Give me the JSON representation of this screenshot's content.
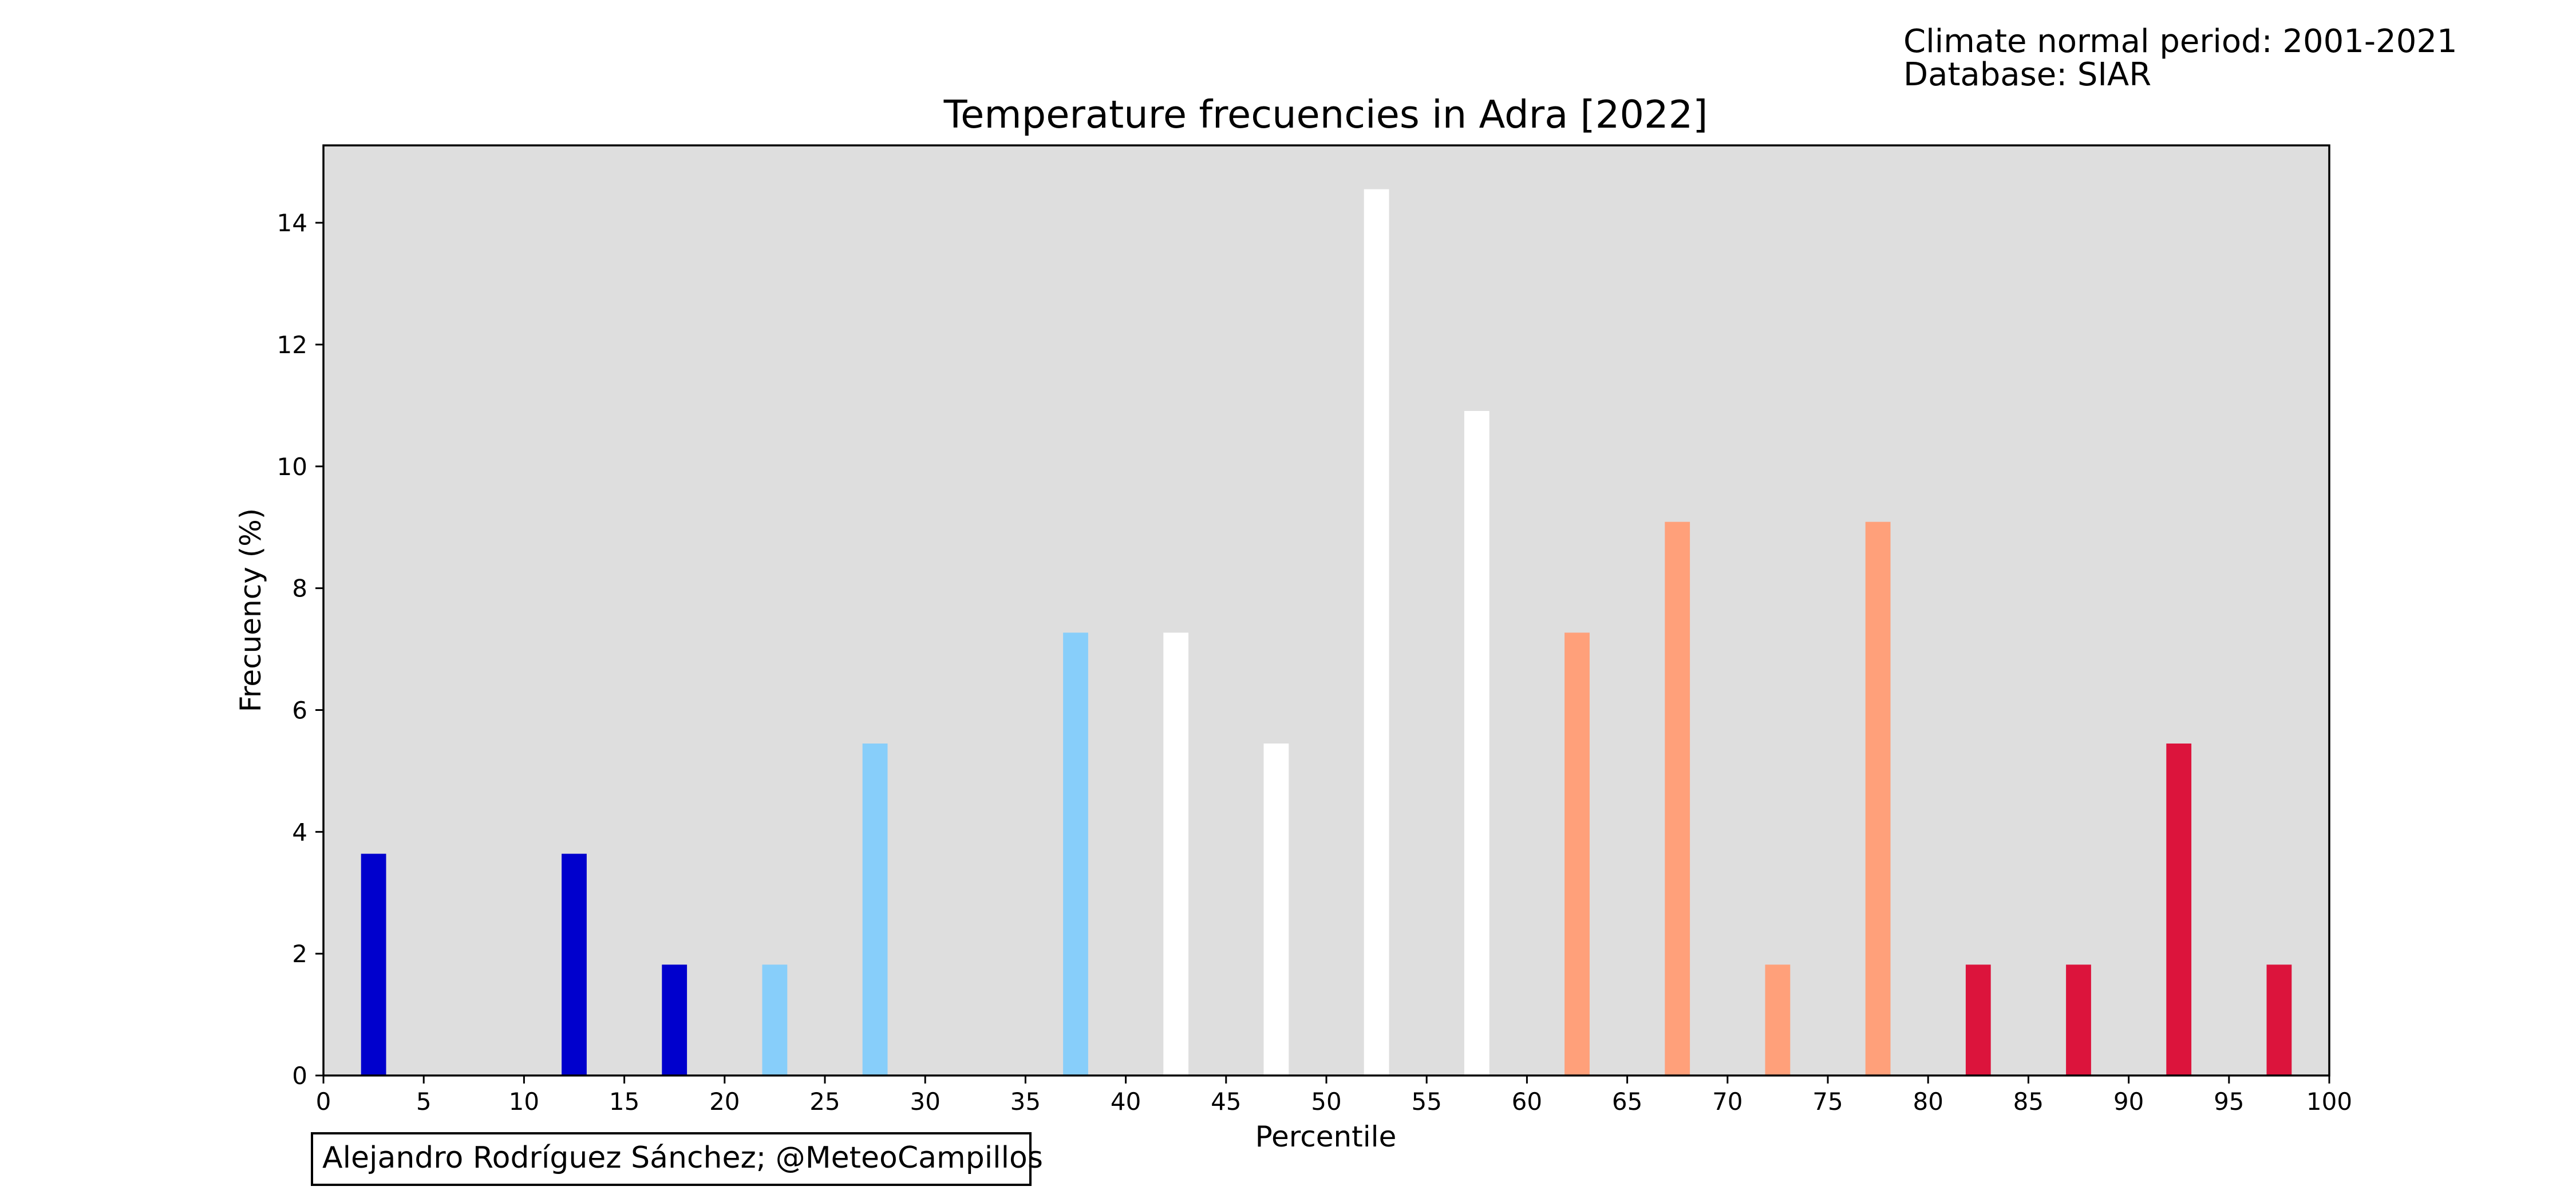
{
  "header": {
    "period": "Climate normal period: 2001-2021",
    "database": "Database: SIAR"
  },
  "credit": "Alejandro Rodríguez Sánchez; @MeteoCampillos",
  "colors": {
    "plot_background": "#dedede",
    "very_cold": "#0000cd",
    "cold": "#87cefa",
    "normal": "#ffffff",
    "warm": "#ffa07a",
    "very_warm": "#dc143c"
  },
  "chart_data": {
    "type": "bar",
    "title": "Temperature frecuencies in Adra [2022]",
    "xlabel": "Percentile",
    "ylabel": "Frecuency (%)",
    "xlim": [
      0,
      100
    ],
    "ylim": [
      0,
      15.27
    ],
    "grid": false,
    "legend": "none",
    "x_ticks": [
      "0",
      "5",
      "10",
      "15",
      "20",
      "25",
      "30",
      "35",
      "40",
      "45",
      "50",
      "55",
      "60",
      "65",
      "70",
      "75",
      "80",
      "85",
      "90",
      "95",
      "100"
    ],
    "y_ticks": [
      "0",
      "2",
      "4",
      "6",
      "8",
      "10",
      "12",
      "14"
    ],
    "categories": [
      2.5,
      7.5,
      12.5,
      17.5,
      22.5,
      27.5,
      32.5,
      37.5,
      42.5,
      47.5,
      52.5,
      57.5,
      62.5,
      67.5,
      72.5,
      77.5,
      82.5,
      87.5,
      92.5,
      97.5
    ],
    "values": [
      3.64,
      0,
      3.64,
      1.82,
      1.82,
      5.45,
      0,
      7.27,
      7.27,
      5.45,
      14.55,
      10.91,
      7.27,
      9.09,
      1.82,
      9.09,
      1.82,
      1.82,
      5.45,
      1.82
    ],
    "bar_colors": [
      "#0000cd",
      "#0000cd",
      "#0000cd",
      "#0000cd",
      "#87cefa",
      "#87cefa",
      "#87cefa",
      "#87cefa",
      "#ffffff",
      "#ffffff",
      "#ffffff",
      "#ffffff",
      "#ffa07a",
      "#ffa07a",
      "#ffa07a",
      "#ffa07a",
      "#dc143c",
      "#dc143c",
      "#dc143c",
      "#dc143c"
    ]
  }
}
